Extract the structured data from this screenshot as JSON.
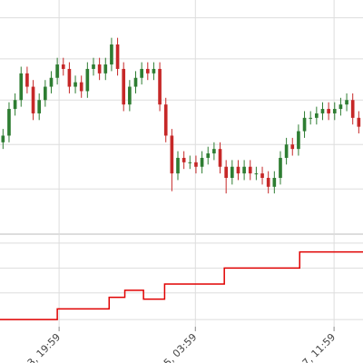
{
  "chart_data": [
    {
      "type": "candlestick",
      "up_color": "#2e7d32",
      "down_color": "#c62828",
      "x": [
        0,
        1,
        2,
        3,
        4,
        5,
        6,
        7,
        8,
        9,
        10,
        11,
        12,
        13,
        14,
        15,
        16,
        17,
        18,
        19,
        20,
        21,
        22,
        23,
        24,
        25,
        26,
        27,
        28,
        29,
        30,
        31,
        32,
        33,
        34,
        35,
        36,
        37,
        38,
        39,
        40,
        41,
        42,
        43,
        44,
        45,
        46,
        47,
        48,
        49,
        50,
        51,
        52,
        53,
        54,
        55,
        56,
        57,
        58,
        59
      ],
      "open": [
        36,
        39,
        51,
        55,
        67,
        61,
        49,
        55,
        61,
        65,
        71,
        69,
        61,
        63,
        59,
        69,
        71,
        67,
        71,
        80,
        69,
        53,
        61,
        65,
        69,
        67,
        69,
        53,
        39,
        22,
        29,
        27,
        27,
        25,
        29,
        31,
        33,
        25,
        20,
        25,
        22,
        25,
        22,
        22,
        20,
        16,
        20,
        29,
        35,
        33,
        41,
        47,
        47,
        49,
        51,
        49,
        51,
        53,
        55,
        47
      ],
      "high": [
        42,
        54,
        58,
        70,
        70,
        64,
        58,
        64,
        68,
        74,
        74,
        72,
        66,
        66,
        72,
        74,
        74,
        74,
        83,
        83,
        72,
        64,
        68,
        72,
        72,
        72,
        72,
        56,
        42,
        32,
        32,
        30,
        30,
        32,
        34,
        36,
        36,
        28,
        28,
        28,
        28,
        28,
        25,
        25,
        23,
        23,
        32,
        38,
        38,
        44,
        50,
        50,
        52,
        54,
        54,
        54,
        56,
        58,
        58,
        50
      ],
      "low": [
        33,
        36,
        48,
        52,
        58,
        46,
        46,
        52,
        58,
        62,
        66,
        58,
        58,
        56,
        56,
        66,
        64,
        64,
        68,
        66,
        50,
        50,
        58,
        62,
        64,
        64,
        50,
        36,
        14,
        19,
        24,
        24,
        22,
        22,
        26,
        28,
        22,
        13,
        17,
        19,
        19,
        19,
        19,
        17,
        13,
        13,
        17,
        26,
        30,
        30,
        38,
        44,
        44,
        46,
        46,
        46,
        48,
        50,
        44,
        40
      ],
      "close": [
        39,
        51,
        55,
        67,
        61,
        49,
        55,
        61,
        65,
        71,
        69,
        61,
        63,
        59,
        69,
        71,
        67,
        71,
        80,
        69,
        53,
        61,
        65,
        69,
        67,
        69,
        53,
        39,
        22,
        29,
        27,
        27,
        25,
        29,
        31,
        33,
        25,
        20,
        25,
        22,
        25,
        22,
        22,
        20,
        16,
        20,
        29,
        35,
        33,
        41,
        47,
        47,
        49,
        51,
        49,
        51,
        53,
        55,
        47,
        43
      ],
      "xlim": [
        -0.5,
        59.7
      ],
      "ylim": [
        0,
        100
      ],
      "yticks": [
        15,
        35,
        55,
        73.5,
        92
      ],
      "xticks": [
        {
          "value": 9.3,
          "label": "3, 19:59"
        },
        {
          "value": 31.9,
          "label": "5, 03:59"
        },
        {
          "value": 54.9,
          "label": "7, 11:59"
        }
      ],
      "grid": true
    },
    {
      "type": "step",
      "color": "#e00000",
      "x": [
        -0.5,
        9,
        17.6,
        20.2,
        23.3,
        26.8,
        36.7,
        49.2
      ],
      "values": [
        8,
        20,
        33,
        41,
        31,
        48,
        66,
        84
      ],
      "xlim": [
        -0.5,
        59.7
      ],
      "ylim": [
        0,
        100
      ],
      "yticks": [
        8,
        38,
        66,
        94
      ],
      "grid": true
    }
  ]
}
